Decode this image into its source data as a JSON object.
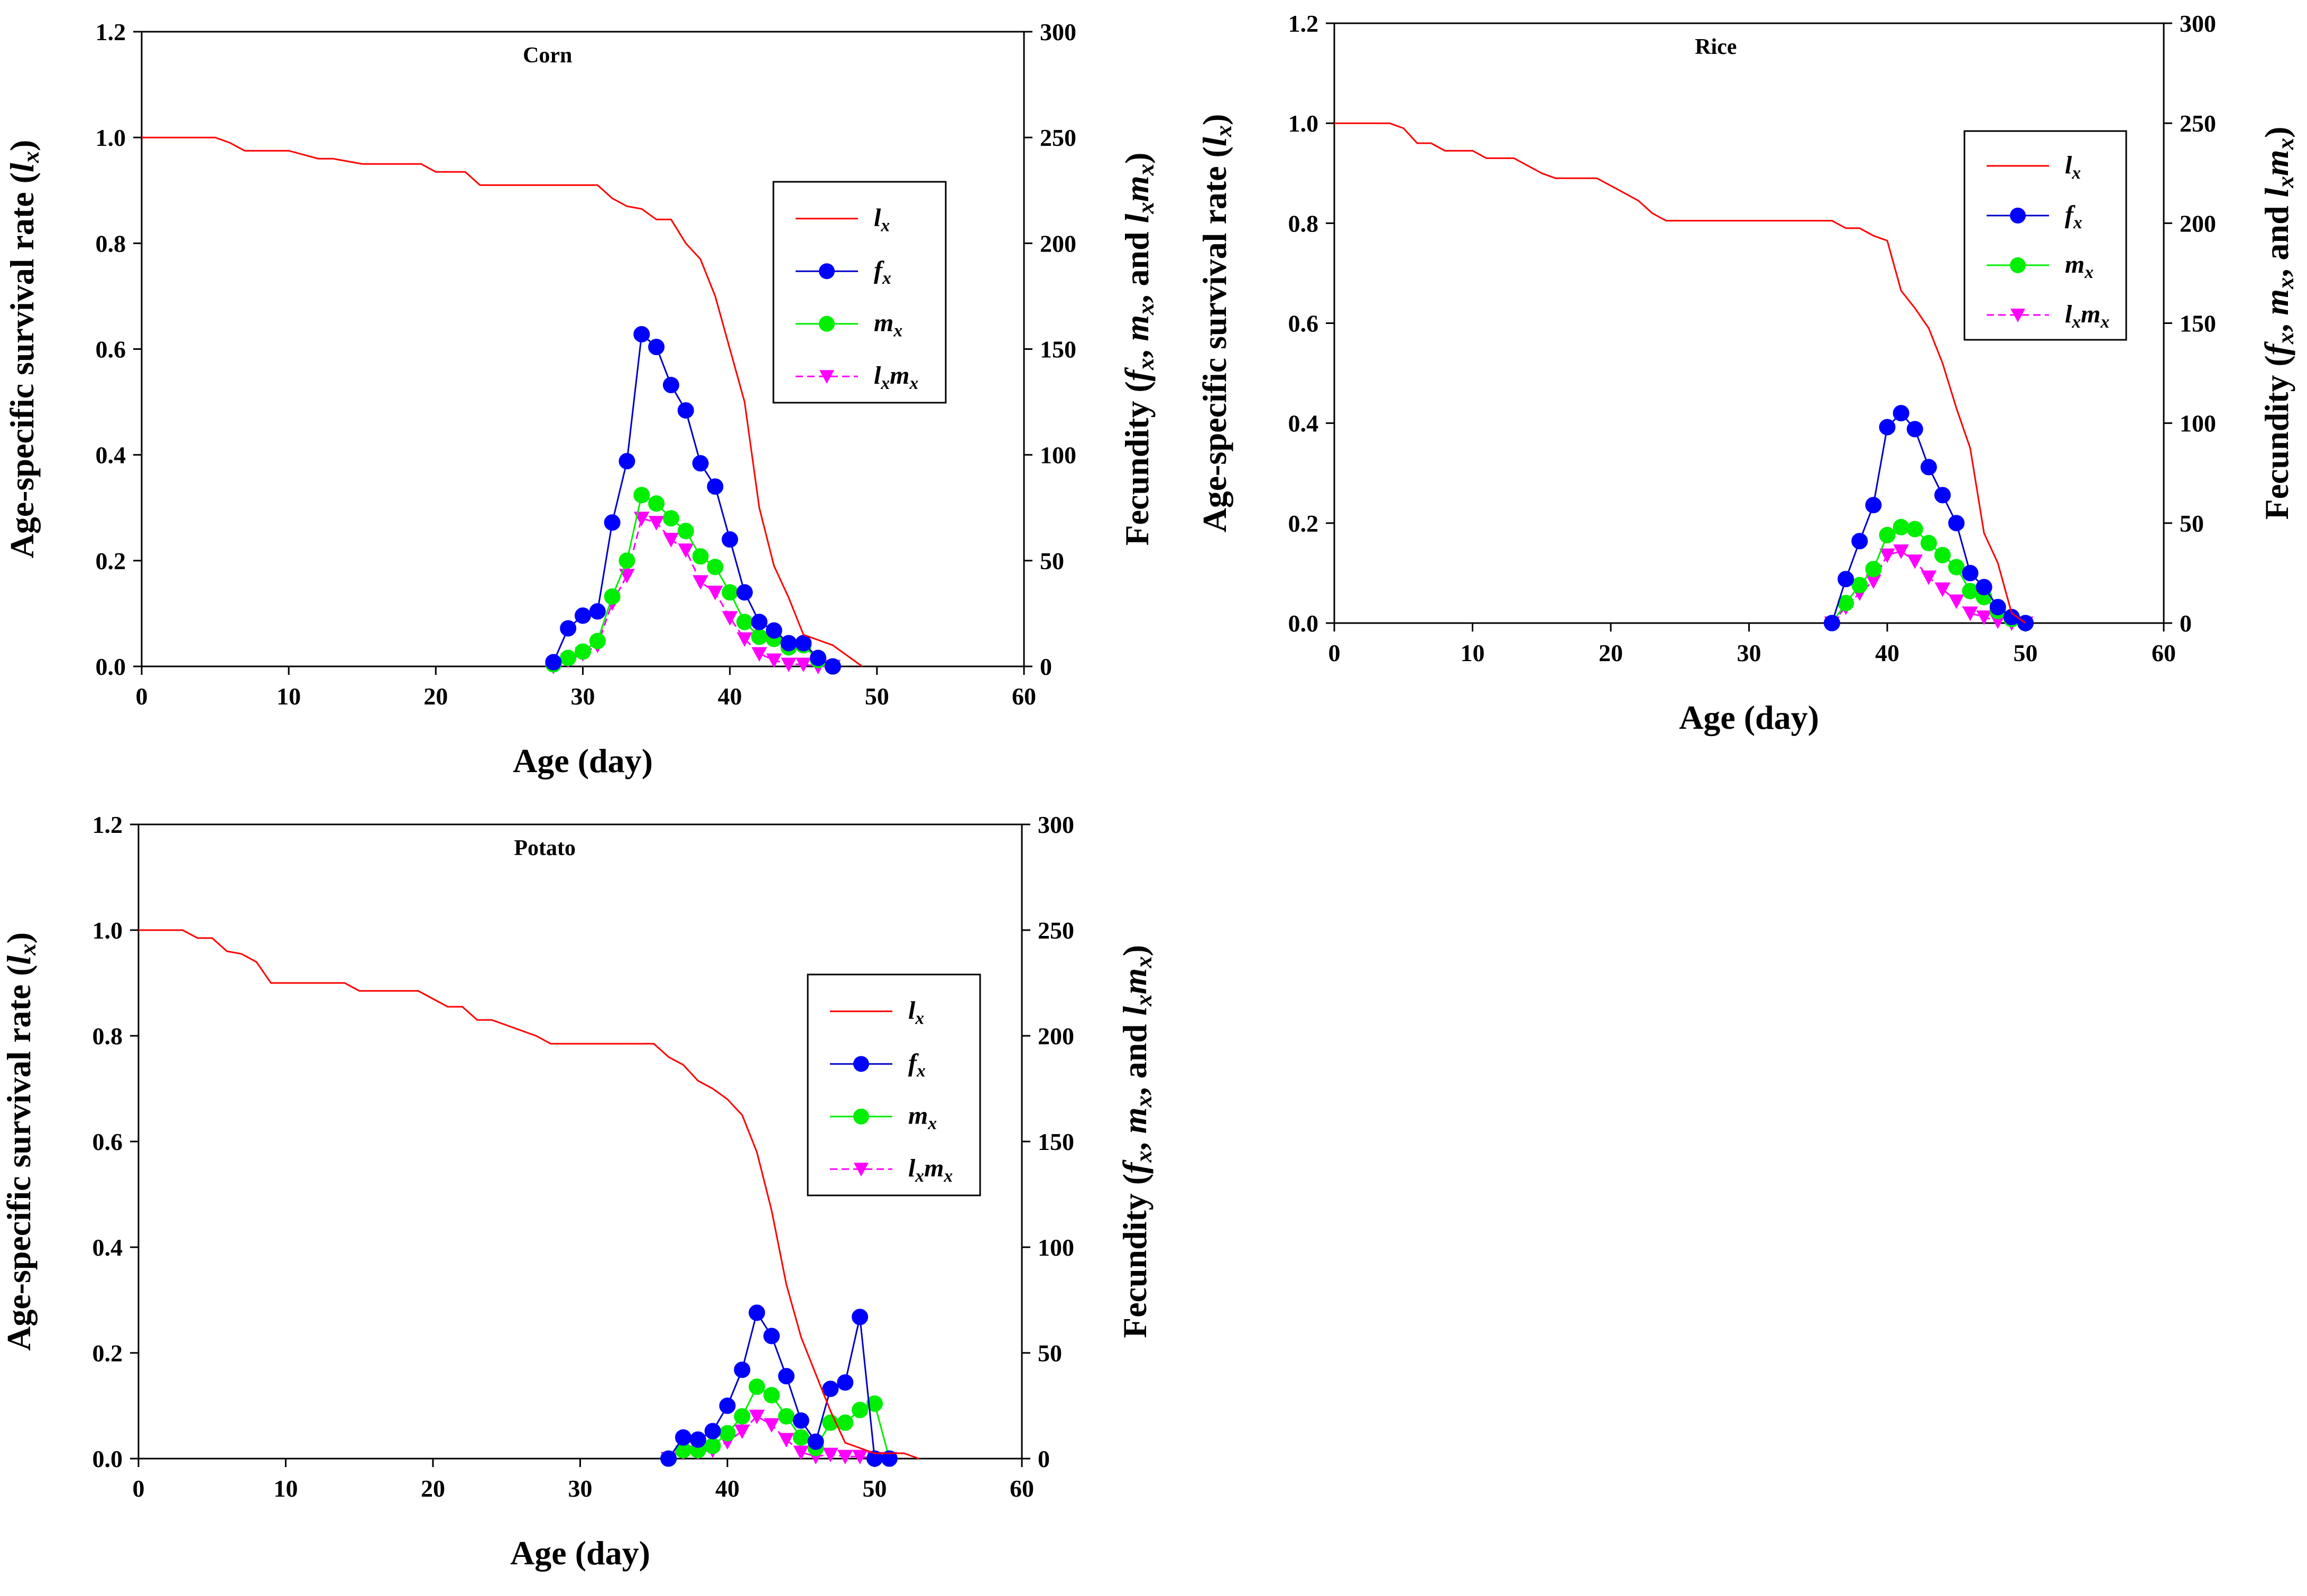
{
  "figure": {
    "x_label": "Age (day)",
    "y_left_label": "Age-specific survival rate (",
    "y_left_label_var": "l",
    "y_left_label_sub": "x",
    "y_left_label_end": ")",
    "y_right_label_start": "Fecundity (",
    "y_right_label_f": "f",
    "y_right_label_m": "m",
    "y_right_label_l": "l",
    "y_right_label_sub": "x",
    "y_right_label_sep": ", ",
    "y_right_label_and": ", and ",
    "y_right_label_end": ")",
    "legend": [
      {
        "key": "lx",
        "var": "l",
        "sub": "x"
      },
      {
        "key": "fx",
        "var": "f",
        "sub": "x"
      },
      {
        "key": "mx",
        "var": "m",
        "sub": "x"
      },
      {
        "key": "lxmx",
        "var": "l",
        "sub": "x",
        "var2": "m",
        "sub2": "x"
      }
    ],
    "colors": {
      "lx": "#ff0000",
      "fx": "#0000ff",
      "fx_line": "#0000cc",
      "mx": "#00ee00",
      "lxmx": "#ff00ff"
    }
  },
  "chart_data": [
    {
      "type": "line",
      "title": "Corn",
      "xlabel": "Age (day)",
      "ylabel": "Age-specific survival rate (lx)",
      "y2label": "Fecundity (fx, mx, and lxmx)",
      "xlim": [
        0,
        60
      ],
      "ylim": [
        0,
        1.2
      ],
      "y2lim": [
        0,
        300
      ],
      "xticks": [
        0,
        10,
        20,
        30,
        40,
        50,
        60
      ],
      "yticks": [
        0.0,
        0.2,
        0.4,
        0.6,
        0.8,
        1.0,
        1.2
      ],
      "y2ticks": [
        0,
        50,
        100,
        150,
        200,
        250,
        300
      ],
      "xtick_labels": [
        "0",
        "10",
        "20",
        "30",
        "40",
        "50",
        "60"
      ],
      "ytick_labels": [
        "0.0",
        "0.2",
        "0.4",
        "0.6",
        "0.8",
        "1.0",
        "1.2"
      ],
      "y2tick_labels": [
        "0",
        "50",
        "100",
        "150",
        "200",
        "250",
        "300"
      ],
      "legend_position": "right",
      "series": [
        {
          "name": "lx",
          "axis": "left",
          "x": [
            0,
            5,
            6,
            7,
            10,
            12,
            13,
            15,
            19,
            20,
            22,
            23,
            31,
            32,
            33,
            34,
            35,
            36,
            37,
            38,
            39,
            40,
            41,
            42,
            43,
            44,
            45,
            46,
            47,
            48,
            49
          ],
          "values": [
            1.0,
            1.0,
            0.99,
            0.975,
            0.975,
            0.96,
            0.96,
            0.95,
            0.95,
            0.935,
            0.935,
            0.91,
            0.91,
            0.885,
            0.87,
            0.865,
            0.845,
            0.845,
            0.8,
            0.77,
            0.7,
            0.6,
            0.5,
            0.3,
            0.19,
            0.13,
            0.06,
            0.05,
            0.04,
            0.02,
            0.0
          ]
        },
        {
          "name": "fx",
          "axis": "right",
          "x": [
            28,
            29,
            30,
            31,
            32,
            33,
            34,
            35,
            36,
            37,
            38,
            39,
            40,
            41,
            42,
            43,
            44,
            45,
            46,
            47
          ],
          "values": [
            2,
            18,
            24,
            26,
            68,
            97,
            157,
            151,
            133,
            121,
            96,
            85,
            60,
            35,
            21,
            17,
            11,
            11,
            4,
            0
          ]
        },
        {
          "name": "mx",
          "axis": "right",
          "x": [
            28,
            29,
            30,
            31,
            32,
            33,
            34,
            35,
            36,
            37,
            38,
            39,
            40,
            41,
            42,
            43,
            44,
            45,
            46,
            47
          ],
          "values": [
            1,
            4,
            7,
            12,
            33,
            50,
            81,
            77,
            70,
            64,
            52,
            47,
            35,
            21,
            14,
            13,
            9,
            10,
            3,
            0
          ]
        },
        {
          "name": "lxmx",
          "axis": "right",
          "x": [
            28,
            29,
            30,
            31,
            32,
            33,
            34,
            35,
            36,
            37,
            38,
            39,
            40,
            41,
            42,
            43,
            44,
            45,
            46,
            47
          ],
          "values": [
            0,
            3,
            6,
            10,
            30,
            43,
            70,
            68,
            60,
            55,
            40,
            35,
            23,
            13,
            6,
            3,
            1,
            1,
            0,
            0
          ]
        }
      ]
    },
    {
      "type": "line",
      "title": "Rice",
      "xlabel": "Age (day)",
      "ylabel": "Age-specific survival rate (lx)",
      "y2label": "Fecundity (fx, mx, and lxmx)",
      "xlim": [
        0,
        60
      ],
      "ylim": [
        0,
        1.2
      ],
      "y2lim": [
        0,
        300
      ],
      "xticks": [
        0,
        10,
        20,
        30,
        40,
        50,
        60
      ],
      "yticks": [
        0.0,
        0.2,
        0.4,
        0.6,
        0.8,
        1.0,
        1.2
      ],
      "y2ticks": [
        0,
        50,
        100,
        150,
        200,
        250,
        300
      ],
      "xtick_labels": [
        "0",
        "10",
        "20",
        "30",
        "40",
        "50",
        "60"
      ],
      "ytick_labels": [
        "0.0",
        "0.2",
        "0.4",
        "0.6",
        "0.8",
        "1.0",
        "1.2"
      ],
      "y2tick_labels": [
        "0",
        "50",
        "100",
        "150",
        "200",
        "250",
        "300"
      ],
      "legend_position": "top-right",
      "series": [
        {
          "name": "lx",
          "axis": "left",
          "x": [
            0,
            4,
            5,
            6,
            7,
            8,
            10,
            11,
            13,
            14,
            15,
            16,
            19,
            20,
            21,
            22,
            23,
            24,
            25,
            36,
            37,
            38,
            39,
            40,
            41,
            42,
            43,
            44,
            45,
            46,
            47,
            48,
            49,
            50
          ],
          "values": [
            1.0,
            1.0,
            0.99,
            0.96,
            0.96,
            0.945,
            0.945,
            0.93,
            0.93,
            0.915,
            0.9,
            0.89,
            0.89,
            0.875,
            0.86,
            0.845,
            0.82,
            0.805,
            0.805,
            0.805,
            0.79,
            0.79,
            0.775,
            0.765,
            0.665,
            0.63,
            0.59,
            0.52,
            0.43,
            0.35,
            0.18,
            0.12,
            0.02,
            0.0
          ]
        },
        {
          "name": "fx",
          "axis": "right",
          "x": [
            36,
            37,
            38,
            39,
            40,
            41,
            42,
            43,
            44,
            45,
            46,
            47,
            48,
            49,
            50
          ],
          "values": [
            0,
            22,
            41,
            59,
            98,
            105,
            97,
            78,
            64,
            50,
            25,
            18,
            8,
            3,
            0
          ]
        },
        {
          "name": "mx",
          "axis": "right",
          "x": [
            36,
            37,
            38,
            39,
            40,
            41,
            42,
            43,
            44,
            45,
            46,
            47,
            48,
            49,
            50
          ],
          "values": [
            0,
            10,
            19,
            27,
            44,
            48,
            47,
            40,
            34,
            28,
            16,
            13,
            6,
            2,
            0
          ]
        },
        {
          "name": "lxmx",
          "axis": "right",
          "x": [
            36,
            37,
            38,
            39,
            40,
            41,
            42,
            43,
            44,
            45,
            46,
            47,
            48,
            49,
            50
          ],
          "values": [
            0,
            8,
            15,
            21,
            34,
            36,
            31,
            23,
            17,
            11,
            5,
            3,
            1,
            0,
            0
          ]
        }
      ]
    },
    {
      "type": "line",
      "title": "Potato",
      "xlabel": "Age (day)",
      "ylabel": "Age-specific survival rate (lx)",
      "y2label": "Fecundity (fx, mx, and lxmx)",
      "xlim": [
        0,
        60
      ],
      "ylim": [
        0,
        1.2
      ],
      "y2lim": [
        0,
        300
      ],
      "xticks": [
        0,
        10,
        20,
        30,
        40,
        50,
        60
      ],
      "yticks": [
        0.0,
        0.2,
        0.4,
        0.6,
        0.8,
        1.0,
        1.2
      ],
      "y2ticks": [
        0,
        50,
        100,
        150,
        200,
        250,
        300
      ],
      "xtick_labels": [
        "0",
        "10",
        "20",
        "30",
        "40",
        "50",
        "60"
      ],
      "ytick_labels": [
        "0.0",
        "0.2",
        "0.4",
        "0.6",
        "0.8",
        "1.0",
        "1.2"
      ],
      "y2tick_labels": [
        "0",
        "50",
        "100",
        "150",
        "200",
        "250",
        "300"
      ],
      "legend_position": "right",
      "series": [
        {
          "name": "lx",
          "axis": "left",
          "x": [
            0,
            3,
            4,
            5,
            6,
            7,
            8,
            9,
            14,
            15,
            19,
            20,
            21,
            22,
            23,
            24,
            25,
            26,
            27,
            28,
            35,
            36,
            37,
            38,
            39,
            40,
            41,
            42,
            43,
            44,
            45,
            46,
            47,
            48,
            49,
            50,
            51,
            52,
            53
          ],
          "values": [
            1.0,
            1.0,
            0.985,
            0.985,
            0.96,
            0.955,
            0.94,
            0.9,
            0.9,
            0.885,
            0.885,
            0.87,
            0.855,
            0.855,
            0.83,
            0.83,
            0.82,
            0.81,
            0.8,
            0.785,
            0.785,
            0.76,
            0.745,
            0.715,
            0.7,
            0.68,
            0.65,
            0.58,
            0.47,
            0.33,
            0.23,
            0.16,
            0.09,
            0.03,
            0.02,
            0.01,
            0.01,
            0.01,
            0.0
          ]
        },
        {
          "name": "fx",
          "axis": "right",
          "x": [
            36,
            37,
            38,
            39,
            40,
            41,
            42,
            43,
            44,
            45,
            46,
            47,
            48,
            49,
            50,
            51
          ],
          "values": [
            0,
            10,
            9,
            13,
            25,
            42,
            69,
            58,
            39,
            18,
            8,
            33,
            36,
            67,
            0,
            0
          ]
        },
        {
          "name": "mx",
          "axis": "right",
          "x": [
            36,
            37,
            38,
            39,
            40,
            41,
            42,
            43,
            44,
            45,
            46,
            47,
            48,
            49,
            50,
            51
          ],
          "values": [
            0,
            4,
            4,
            6,
            12,
            20,
            34,
            30,
            20,
            10,
            5,
            17,
            17,
            23,
            26,
            0
          ]
        },
        {
          "name": "lxmx",
          "axis": "right",
          "x": [
            36,
            37,
            38,
            39,
            40,
            41,
            42,
            43,
            44,
            45,
            46,
            47,
            48,
            49,
            50,
            51
          ],
          "values": [
            0,
            3,
            3,
            4,
            8,
            13,
            20,
            16,
            9,
            3,
            1,
            2,
            1,
            1,
            0,
            0
          ]
        }
      ]
    }
  ]
}
